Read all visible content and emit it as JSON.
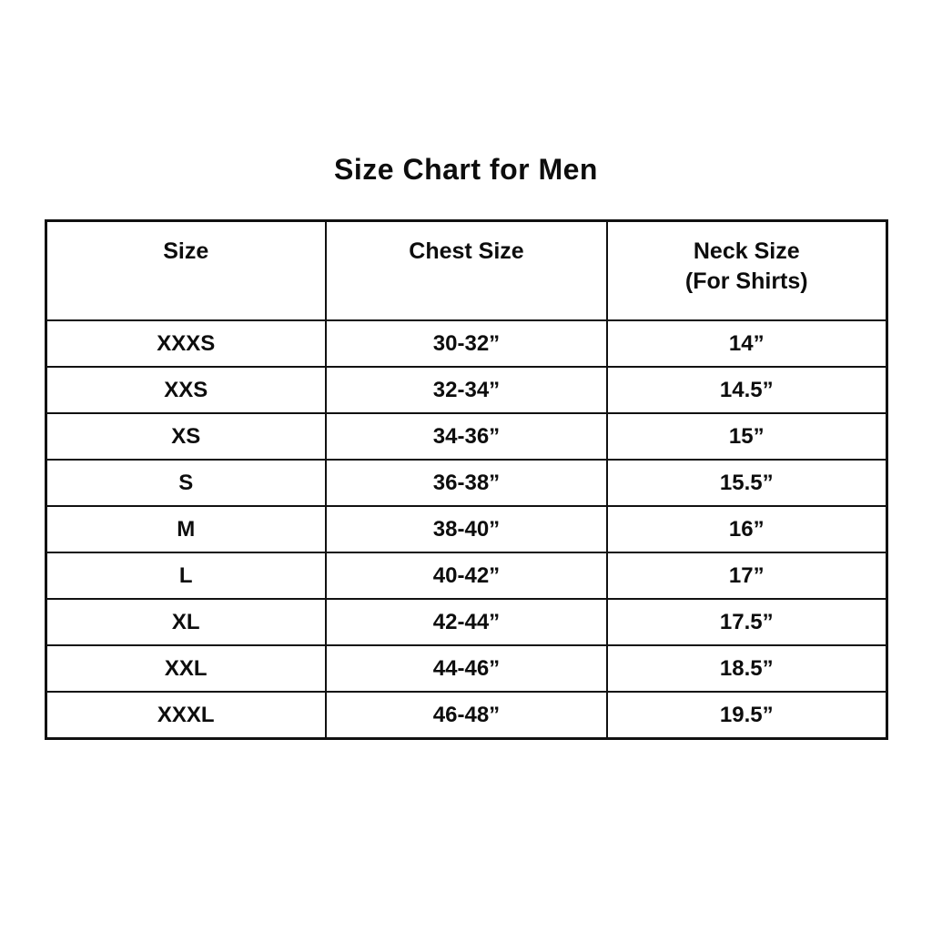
{
  "page": {
    "title": "Size Chart for Men"
  },
  "table": {
    "headers": {
      "size": "Size",
      "chest": "Chest Size",
      "neck_line1": "Neck Size",
      "neck_line2": "(For Shirts)"
    }
  },
  "chart_data": {
    "type": "table",
    "title": "Size Chart for Men",
    "columns": [
      "Size",
      "Chest Size",
      "Neck Size (For Shirts)"
    ],
    "rows": [
      [
        "XXXS",
        "30-32”",
        "14”"
      ],
      [
        "XXS",
        "32-34”",
        "14.5”"
      ],
      [
        "XS",
        "34-36”",
        "15”"
      ],
      [
        "S",
        "36-38”",
        "15.5”"
      ],
      [
        "M",
        "38-40”",
        "16”"
      ],
      [
        "L",
        "40-42”",
        "17”"
      ],
      [
        "XL",
        "42-44”",
        "17.5”"
      ],
      [
        "XXL",
        "44-46”",
        "18.5”"
      ],
      [
        "XXXL",
        "46-48”",
        "19.5”"
      ]
    ],
    "layout": {
      "text_color": "#0d0d0d",
      "border_color": "#111111",
      "background_color": "#ffffff",
      "grid": true
    }
  }
}
